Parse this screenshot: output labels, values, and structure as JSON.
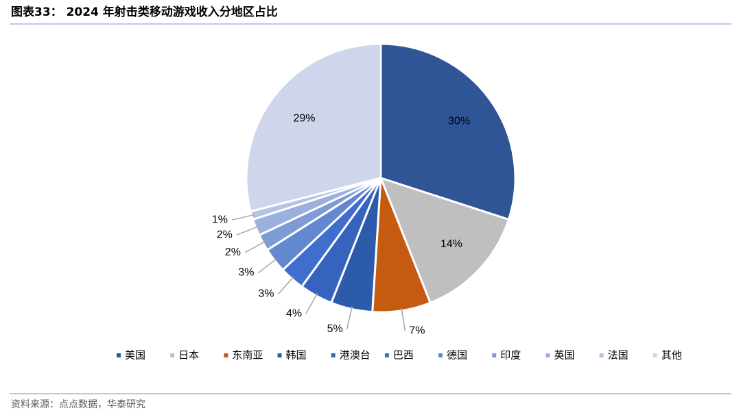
{
  "chart_data": {
    "type": "pie",
    "title": "图表33： 2024 年射击类移动游戏收入分地区占比",
    "source": "资料来源：点点数据，华泰研究",
    "categories": [
      "美国",
      "日本",
      "东南亚",
      "韩国",
      "港澳台",
      "巴西",
      "德国",
      "印度",
      "英国",
      "法国",
      "其他"
    ],
    "values": [
      30,
      14,
      7,
      5,
      4,
      3,
      3,
      2,
      2,
      1,
      29
    ],
    "value_labels": [
      "30%",
      "14%",
      "7%",
      "5%",
      "4%",
      "3%",
      "3%",
      "2%",
      "2%",
      "1%",
      "29%"
    ],
    "colors": [
      "#2f5597",
      "#bfbfbf",
      "#c55a11",
      "#2c5bab",
      "#3563bd",
      "#3f6ecc",
      "#6388d0",
      "#7f9bd6",
      "#9cb0de",
      "#b6c2e6",
      "#cfd5ea"
    ],
    "legend": "bottom"
  }
}
